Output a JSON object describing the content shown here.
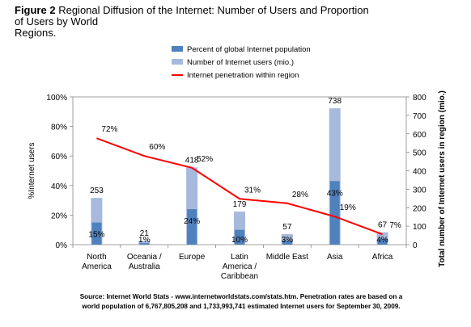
{
  "caption": {
    "figure_label": "Figure 2",
    "line1": "Regional Diffusion of the Internet: Number of Users and Proportion",
    "line2": "of Users by World",
    "line3": "Regions."
  },
  "chart_data": {
    "type": "bar",
    "categories": [
      "North America",
      "Oceania / Australia",
      "Europe",
      "Latin America / Caribbean",
      "Middle East",
      "Asia",
      "Africa"
    ],
    "category_lines": [
      [
        "North",
        "America"
      ],
      [
        "Oceania /",
        "Australia"
      ],
      [
        "Europe"
      ],
      [
        "Latin",
        "America /",
        "Caribbean"
      ],
      [
        "Middle East"
      ],
      [
        "Asia"
      ],
      [
        "Africa"
      ]
    ],
    "series": [
      {
        "name": "Percent of global Internet population",
        "type": "bar",
        "axis": "left",
        "color": "#4f81bd",
        "values": [
          15,
          1,
          24,
          10,
          3,
          43,
          4
        ],
        "labels": [
          "15%",
          "1%",
          "24%",
          "10%",
          "3%",
          "43%",
          "4%"
        ]
      },
      {
        "name": "Number of Internet users (mio.)",
        "type": "bar",
        "axis": "right",
        "color": "#a7b9dc",
        "values": [
          253,
          21,
          418,
          179,
          57,
          738,
          67
        ],
        "labels": [
          "253",
          "21",
          "418",
          "179",
          "57",
          "738",
          "67"
        ]
      },
      {
        "name": "Internet penetration within region",
        "type": "line",
        "axis": "left",
        "color": "#ff0000",
        "values": [
          72,
          60,
          52,
          31,
          28,
          19,
          7
        ],
        "labels": [
          "72%",
          "60%",
          "52%",
          "31%",
          "28%",
          "19%",
          "7%"
        ]
      }
    ],
    "ylabel": "%Internet users",
    "y2label": "Total number of Internet users in region (mio.)",
    "ylim": [
      0,
      100
    ],
    "y2lim": [
      0,
      800
    ],
    "yticks": [
      "0%",
      "20%",
      "40%",
      "60%",
      "80%",
      "100%"
    ],
    "y2ticks": [
      "0",
      "100",
      "200",
      "300",
      "400",
      "500",
      "600",
      "700",
      "800"
    ],
    "legend_position": "top"
  },
  "source": {
    "line1": "Source: Internet World Stats - www.internetworldstats.com/stats.htm. Penetration rates are based on a",
    "line2": "world population of 6,767,805,208 and 1,733,993,741 estimated Internet users for September 30, 2009."
  }
}
